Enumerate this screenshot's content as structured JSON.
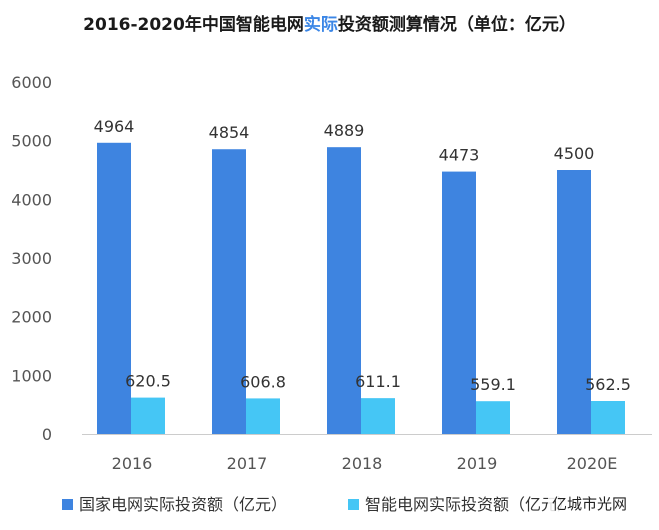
{
  "title": {
    "before": "2016-2020年中国智能电网",
    "highlight": "实际",
    "after": "投资额测算情况（单位：亿元）"
  },
  "colors": {
    "title_highlight": "#3b86e6",
    "series_1": "#3e84e0",
    "series_2": "#45c6f5"
  },
  "watermark": "亿城市光网",
  "chart_data": {
    "type": "bar",
    "categories": [
      "2016",
      "2017",
      "2018",
      "2019",
      "2020E"
    ],
    "series": [
      {
        "name": "国家电网实际投资额（亿元）",
        "values": [
          "4964",
          "4854",
          "4889",
          "4473",
          "4500"
        ]
      },
      {
        "name": "智能电网实际投资额（亿元）",
        "values": [
          "620.5",
          "606.8",
          "611.1",
          "559.1",
          "562.5"
        ]
      }
    ],
    "y_ticks": [
      "0",
      "1000",
      "2000",
      "3000",
      "4000",
      "5000",
      "6000"
    ],
    "ylim": [
      0,
      6000
    ],
    "grid": false,
    "legend": "bottom"
  }
}
